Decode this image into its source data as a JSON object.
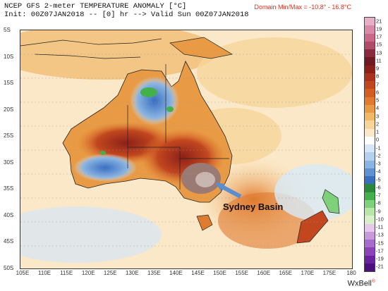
{
  "header": {
    "line1": "NCEP GFS 2-meter TEMPERATURE ANOMALY [°C]",
    "line2": "Init: 00Z07JAN2018 -- [0] hr --> Valid Sun 00Z07JAN2018",
    "domain_minmax": "Domain Min/Max = -10.8° - 16.8°C"
  },
  "lat_labels": [
    "5S",
    "10S",
    "15S",
    "20S",
    "25S",
    "30S",
    "35S",
    "40S",
    "45S",
    "50S"
  ],
  "lon_labels": [
    "105E",
    "110E",
    "115E",
    "120E",
    "125E",
    "130E",
    "135E",
    "140E",
    "145E",
    "150E",
    "155E",
    "160E",
    "165E",
    "170E",
    "175E",
    "180"
  ],
  "colorbar": {
    "labels": [
      "21",
      "19",
      "17",
      "15",
      "13",
      "11",
      "9",
      "8",
      "7",
      "6",
      "5",
      "4",
      "3",
      "2",
      "1",
      "0",
      "-1",
      "-2",
      "-3",
      "-4",
      "-5",
      "-6",
      "-7",
      "-8",
      "-9",
      "-10",
      "-11",
      "-13",
      "-15",
      "-17",
      "-19",
      "-21"
    ],
    "colors": [
      "#e8b0c8",
      "#d98aa8",
      "#c96888",
      "#b04b6a",
      "#8b2a3e",
      "#6f1a22",
      "#8c2018",
      "#a8321e",
      "#c2471f",
      "#d45d22",
      "#e07a2e",
      "#e89a44",
      "#f0b868",
      "#f6d49a",
      "#fbe8c8",
      "#ffffff",
      "#d6e6f6",
      "#b4d0ee",
      "#8ab4e2",
      "#5f92d2",
      "#3a6fc0",
      "#2a8a3a",
      "#44b04c",
      "#7ed07a",
      "#b8e6a8",
      "#d8f0c8",
      "#e6c8ec",
      "#c89adc",
      "#a86ccc",
      "#8a44b8",
      "#6a22a0",
      "#4c107c"
    ]
  },
  "annotation": "Sydney Basin",
  "brand": "WxBell"
}
